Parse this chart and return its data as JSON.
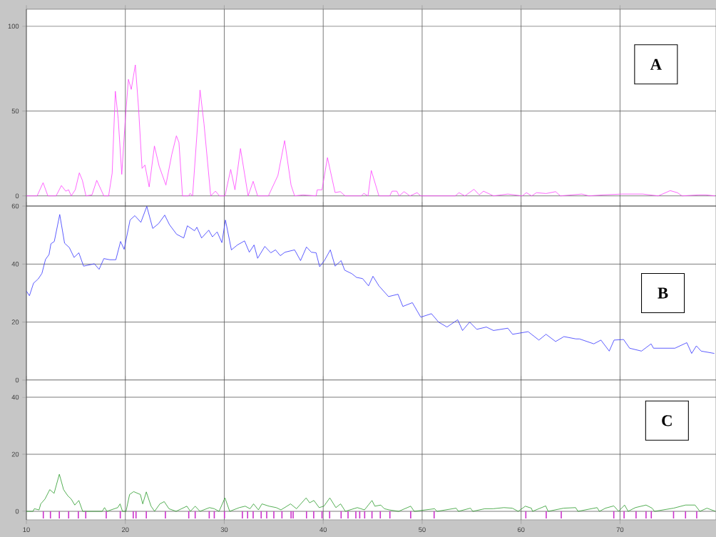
{
  "chart_data": [
    {
      "type": "line",
      "annotations": [
        "A"
      ],
      "xlim": [
        10,
        79.7
      ],
      "xticks": [
        10,
        20,
        30,
        40,
        50,
        60,
        70
      ],
      "ylim": [
        -6,
        110
      ],
      "yticks": [
        0,
        50,
        100
      ],
      "grid": true,
      "tick_labels": "y",
      "series": [
        {
          "color": "#ff40ff",
          "x": [
            10,
            11.08,
            11.69,
            12.17,
            13.0,
            13.54,
            13.98,
            14.27,
            14.53,
            14.94,
            15.35,
            15.66,
            16.02,
            16.63,
            17.11,
            17.83,
            18.31,
            18.67,
            18.99,
            19.28,
            19.64,
            20.0,
            20.31,
            20.6,
            21.01,
            21.33,
            21.69,
            21.98,
            22.41,
            22.94,
            23.42,
            24.1,
            24.7,
            25.16,
            25.42,
            25.78,
            26.39,
            26.55,
            26.8,
            27.55,
            27.95,
            28.63,
            29.11,
            29.52,
            30.07,
            30.65,
            31.08,
            31.64,
            32.41,
            32.92,
            33.37,
            34.46,
            35.42,
            36.1,
            36.75,
            37.11,
            37.95,
            39.28,
            39.4,
            39.88,
            40.43,
            41.2,
            41.73,
            42.22,
            43.86,
            44.1,
            44.53,
            44.86,
            45.63,
            46.72,
            46.96,
            47.44,
            47.68,
            48.17,
            48.77,
            49.49,
            49.86,
            53.35,
            53.72,
            54.32,
            55.24,
            55.77,
            56.2,
            57.21,
            58.66,
            60.11,
            60.54,
            61.07,
            61.56,
            62.52,
            63.49,
            63.97,
            66.14,
            66.86,
            68.31,
            70.24,
            72.29,
            73.86,
            75.07,
            75.8,
            76.27,
            77.96,
            78.69,
            79.6
          ],
          "values": [
            0,
            0,
            7.8,
            0,
            0,
            6.1,
            2.8,
            3.6,
            0,
            3.6,
            13.6,
            9.2,
            0,
            0.6,
            9.2,
            0,
            0,
            13.4,
            61.7,
            45.4,
            12.7,
            45.4,
            68.7,
            62.8,
            77.2,
            52.4,
            16.2,
            18.2,
            5.3,
            29.4,
            17.5,
            6.4,
            24.5,
            35.4,
            31.5,
            0,
            0,
            1.5,
            0,
            62.4,
            42.6,
            0,
            2.8,
            0,
            0,
            15.6,
            3.6,
            27.9,
            0,
            8.6,
            0,
            0,
            12.0,
            32.6,
            6.4,
            0,
            0.6,
            0,
            3.6,
            3.6,
            22.6,
            2.0,
            2.5,
            0,
            0,
            1.5,
            0,
            15.0,
            0,
            0,
            2.8,
            2.8,
            0,
            2.5,
            0,
            1.9,
            0,
            0,
            1.9,
            0,
            3.9,
            0.6,
            2.8,
            0,
            1.1,
            0,
            1.9,
            0,
            1.9,
            1.4,
            2.5,
            0,
            1.1,
            0,
            0.6,
            1.1,
            1.1,
            0,
            3.1,
            1.9,
            0,
            0.6,
            0.6,
            0
          ]
        }
      ]
    },
    {
      "type": "line",
      "annotations": [
        "B"
      ],
      "xlim": [
        10,
        79.7
      ],
      "xticks": [
        10,
        20,
        30,
        40,
        50,
        60,
        70
      ],
      "ylim": [
        0,
        60
      ],
      "yticks": [
        0,
        20,
        40,
        60
      ],
      "grid": true,
      "tick_labels": "y",
      "series": [
        {
          "color": "#3333ff",
          "x": [
            10,
            10.31,
            10.72,
            11.2,
            11.57,
            11.93,
            12.29,
            12.48,
            12.82,
            13.37,
            13.86,
            14.34,
            14.82,
            15.3,
            15.78,
            16.87,
            17.35,
            17.83,
            18.43,
            19.04,
            19.52,
            19.88,
            20.48,
            20.96,
            21.57,
            22.17,
            22.77,
            23.37,
            23.98,
            24.46,
            25.18,
            25.9,
            26.27,
            26.99,
            27.23,
            27.71,
            28.43,
            28.8,
            29.28,
            29.76,
            30.12,
            30.72,
            31.33,
            32.05,
            32.53,
            33.01,
            33.37,
            34.1,
            34.7,
            35.18,
            35.66,
            36.14,
            37.11,
            37.71,
            38.31,
            38.8,
            39.28,
            39.64,
            40.12,
            40.72,
            41.2,
            41.81,
            42.17,
            42.89,
            43.37,
            43.98,
            44.58,
            45.03,
            45.63,
            46.6,
            47.56,
            48.05,
            49.01,
            49.86,
            50.94,
            51.66,
            52.51,
            53.59,
            54.08,
            54.8,
            55.52,
            56.49,
            57.21,
            58.66,
            59.14,
            60.71,
            61.8,
            62.52,
            63.49,
            64.33,
            65.54,
            65.9,
            67.35,
            68.07,
            68.91,
            69.4,
            70.36,
            70.97,
            72.17,
            73.14,
            73.38,
            75.55,
            76.75,
            77.24,
            77.72,
            78.2,
            79.53
          ],
          "values": [
            30.7,
            29.1,
            33.4,
            34.9,
            36.8,
            41.6,
            43.3,
            47.0,
            47.8,
            57.1,
            47.2,
            45.7,
            42.3,
            43.9,
            39.3,
            40.1,
            38.2,
            41.9,
            41.5,
            41.5,
            47.8,
            45.1,
            55.2,
            56.7,
            54.4,
            59.9,
            52.3,
            54.0,
            56.9,
            53.6,
            50.3,
            49.0,
            53.2,
            51.5,
            52.7,
            49.0,
            51.7,
            49.4,
            51.1,
            47.4,
            55.2,
            44.9,
            46.6,
            48.0,
            44.1,
            46.6,
            42.0,
            46.1,
            43.9,
            44.9,
            42.9,
            44.1,
            44.9,
            41.2,
            45.9,
            44.1,
            43.9,
            39.1,
            41.2,
            44.9,
            39.3,
            41.2,
            37.9,
            36.7,
            35.4,
            35.0,
            32.5,
            35.8,
            32.5,
            28.8,
            29.6,
            25.4,
            26.7,
            21.7,
            22.9,
            20.0,
            18.3,
            20.8,
            17.1,
            20.0,
            17.5,
            18.3,
            17.1,
            17.9,
            15.8,
            16.7,
            13.8,
            15.8,
            13.3,
            15.0,
            14.2,
            14.2,
            12.5,
            13.8,
            10.0,
            13.8,
            14.0,
            11.0,
            10.0,
            12.5,
            11.0,
            11.0,
            12.9,
            9.2,
            11.8,
            10.0,
            9.2
          ]
        }
      ]
    },
    {
      "type": "line",
      "annotations": [
        "C"
      ],
      "xlim": [
        10,
        79.7
      ],
      "xticks": [
        10,
        20,
        30,
        40,
        50,
        60,
        70
      ],
      "ylim": [
        -3,
        46
      ],
      "yticks": [
        0,
        20,
        40
      ],
      "grid": true,
      "series": [
        {
          "color": "#2a9a2a",
          "x": [
            10,
            10.67,
            10.8,
            11.28,
            11.45,
            11.88,
            12.36,
            12.8,
            13.33,
            13.76,
            14.17,
            14.53,
            14.89,
            15.3,
            15.69,
            17.66,
            17.9,
            18.14,
            19.23,
            19.47,
            19.71,
            20.07,
            20.43,
            20.84,
            21.52,
            21.76,
            22.12,
            22.6,
            22.96,
            23.49,
            23.93,
            24.41,
            25.13,
            26.22,
            26.58,
            27.06,
            27.54,
            28.51,
            28.99,
            29.47,
            30.07,
            30.55,
            31.52,
            32.12,
            32.6,
            32.96,
            33.45,
            33.81,
            34.53,
            35.25,
            35.73,
            36.7,
            37.3,
            38.27,
            38.63,
            39.06,
            39.59,
            40.07,
            40.67,
            41.28,
            41.76,
            42.24,
            43.45,
            44.17,
            44.93,
            45.22,
            45.82,
            46.18,
            46.67,
            47.63,
            48.84,
            49.2,
            51.26,
            51.5,
            53.43,
            53.67,
            54.88,
            55.12,
            56.33,
            57.17,
            58.26,
            59.11,
            59.71,
            60.43,
            61.04,
            61.16,
            62.49,
            62.73,
            64.3,
            65.51,
            65.75,
            67.68,
            67.92,
            68.53,
            69.37,
            69.86,
            70.46,
            70.82,
            71.55,
            72.63,
            73.24,
            73.48,
            75.41,
            76.62,
            77.58,
            78.07,
            78.79,
            79.64
          ],
          "values": [
            0,
            0,
            0.9,
            0.5,
            2.6,
            4.3,
            7.6,
            6.3,
            13.0,
            7.6,
            5.5,
            4.3,
            2.2,
            3.8,
            0,
            0,
            1.3,
            0,
            1.3,
            2.6,
            0,
            0,
            5.9,
            6.9,
            5.9,
            2.6,
            6.8,
            1.8,
            0,
            2.6,
            3.4,
            0.9,
            0,
            1.8,
            0,
            1.8,
            0,
            1.3,
            0.9,
            0,
            4.7,
            0,
            1.3,
            1.8,
            0.9,
            2.6,
            0.5,
            2.6,
            1.8,
            1.3,
            0.5,
            2.6,
            0.9,
            4.7,
            3.0,
            3.8,
            1.3,
            1.8,
            4.7,
            1.3,
            2.6,
            0,
            1.3,
            0.5,
            3.8,
            1.8,
            2.2,
            0.9,
            0.5,
            0,
            1.8,
            0,
            0.9,
            0,
            1.1,
            0,
            1.1,
            0,
            0.9,
            0.9,
            1.3,
            1.1,
            0,
            1.8,
            1.1,
            0,
            1.9,
            0,
            1.1,
            1.3,
            0,
            1.3,
            0,
            1.1,
            1.9,
            0,
            2.2,
            0,
            1.3,
            2.2,
            1.1,
            0,
            1.1,
            2.2,
            2.2,
            0,
            1.1,
            0
          ]
        },
        {
          "type": "bar",
          "color": "#cc33cc",
          "x": [
            11.71,
            12.43,
            13.33,
            14.27,
            15.25,
            16.0,
            18.07,
            19.49,
            20.8,
            21.08,
            22.12,
            24.05,
            26.41,
            27.06,
            28.48,
            28.99,
            30.02,
            31.83,
            32.36,
            32.92,
            33.73,
            34.29,
            35.01,
            35.83,
            36.75,
            36.96,
            38.31,
            39.04,
            39.88,
            40.65,
            41.81,
            42.51,
            43.3,
            43.69,
            44.19,
            44.93,
            45.77,
            46.74,
            48.84,
            51.21,
            60.48,
            62.54,
            64.06,
            69.37,
            70.41,
            71.62,
            72.63,
            73.16,
            75.41,
            76.62,
            77.75
          ],
          "values": [
            -2.5,
            -2.5,
            -2.5,
            -2.5,
            -2.5,
            -2.5,
            -2.5,
            -2.5,
            -2.5,
            -2.5,
            -2.5,
            -2.5,
            -2.5,
            -2.5,
            -2.5,
            -2.5,
            -2.5,
            -2.5,
            -2.5,
            -2.5,
            -2.5,
            -2.5,
            -2.5,
            -2.5,
            -2.5,
            -2.5,
            -2.5,
            -2.5,
            -2.5,
            -2.5,
            -2.5,
            -2.5,
            -2.5,
            -2.5,
            -2.5,
            -2.5,
            -2.5,
            -2.5,
            -2.5,
            -2.5,
            -2.5,
            -2.5,
            -2.5,
            -2.5,
            -2.5,
            -2.5,
            -2.5,
            -2.5,
            -2.5,
            -2.5,
            -2.5
          ]
        }
      ]
    }
  ]
}
